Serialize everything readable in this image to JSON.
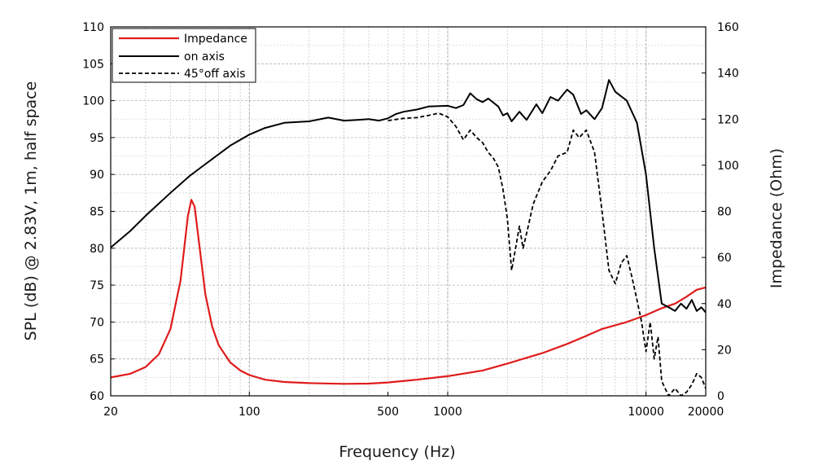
{
  "chart_data": {
    "type": "line",
    "title": "",
    "xlabel": "Frequency (Hz)",
    "ylabel_left": "SPL (dB) @ 2.83V, 1m, half space",
    "ylabel_right": "Impedance (Ohm)",
    "x_scale": "log",
    "xlim": [
      20,
      20000
    ],
    "ylim_left": [
      60,
      110
    ],
    "ylim_right": [
      0,
      160
    ],
    "x_ticks": [
      20,
      100,
      500,
      1000,
      10000,
      20000
    ],
    "x_tick_labels": [
      "20",
      "100",
      "500",
      "1000",
      "10000",
      "20000"
    ],
    "y_left_ticks": [
      60,
      65,
      70,
      75,
      80,
      85,
      90,
      95,
      100,
      105,
      110
    ],
    "y_right_ticks": [
      0,
      20,
      40,
      60,
      80,
      100,
      120,
      140,
      160
    ],
    "grid": true,
    "legend_position": "top-left",
    "series": [
      {
        "name": "Impedance",
        "axis": "right",
        "color": "#e01b1b",
        "style": "solid",
        "points": [
          [
            20,
            8
          ],
          [
            25,
            9.5
          ],
          [
            30,
            12.5
          ],
          [
            35,
            18
          ],
          [
            40,
            29
          ],
          [
            45,
            50
          ],
          [
            49,
            78
          ],
          [
            51,
            85
          ],
          [
            53,
            82
          ],
          [
            56,
            65
          ],
          [
            60,
            44
          ],
          [
            65,
            30
          ],
          [
            70,
            22
          ],
          [
            80,
            14.5
          ],
          [
            90,
            11
          ],
          [
            100,
            9
          ],
          [
            120,
            7
          ],
          [
            150,
            6
          ],
          [
            200,
            5.5
          ],
          [
            300,
            5.2
          ],
          [
            400,
            5.3
          ],
          [
            500,
            5.8
          ],
          [
            700,
            7
          ],
          [
            1000,
            8.5
          ],
          [
            1500,
            11
          ],
          [
            2000,
            14
          ],
          [
            3000,
            18.5
          ],
          [
            4000,
            22.5
          ],
          [
            5000,
            26
          ],
          [
            6000,
            29
          ],
          [
            8000,
            32
          ],
          [
            10000,
            35
          ],
          [
            12000,
            38
          ],
          [
            14000,
            40
          ],
          [
            16000,
            43
          ],
          [
            18000,
            46
          ],
          [
            20000,
            47
          ]
        ]
      },
      {
        "name": "on axis",
        "axis": "left",
        "color": "#000000",
        "style": "solid",
        "points": [
          [
            20,
            80.1
          ],
          [
            25,
            82.3
          ],
          [
            30,
            84.4
          ],
          [
            40,
            87.5
          ],
          [
            50,
            89.8
          ],
          [
            60,
            91.4
          ],
          [
            80,
            93.9
          ],
          [
            100,
            95.4
          ],
          [
            120,
            96.3
          ],
          [
            150,
            97
          ],
          [
            200,
            97.2
          ],
          [
            250,
            97.7
          ],
          [
            300,
            97.3
          ],
          [
            350,
            97.4
          ],
          [
            400,
            97.5
          ],
          [
            450,
            97.3
          ],
          [
            500,
            97.6
          ],
          [
            550,
            98.2
          ],
          [
            600,
            98.5
          ],
          [
            700,
            98.8
          ],
          [
            800,
            99.2
          ],
          [
            1000,
            99.3
          ],
          [
            1100,
            99
          ],
          [
            1200,
            99.4
          ],
          [
            1300,
            101
          ],
          [
            1400,
            100.2
          ],
          [
            1500,
            99.8
          ],
          [
            1600,
            100.3
          ],
          [
            1800,
            99.2
          ],
          [
            1900,
            98
          ],
          [
            2000,
            98.3
          ],
          [
            2100,
            97.2
          ],
          [
            2300,
            98.5
          ],
          [
            2500,
            97.4
          ],
          [
            2800,
            99.5
          ],
          [
            3000,
            98.3
          ],
          [
            3300,
            100.5
          ],
          [
            3600,
            100
          ],
          [
            4000,
            101.5
          ],
          [
            4300,
            100.8
          ],
          [
            4700,
            98.2
          ],
          [
            5000,
            98.7
          ],
          [
            5500,
            97.5
          ],
          [
            6000,
            99
          ],
          [
            6500,
            102.8
          ],
          [
            7000,
            101.2
          ],
          [
            8000,
            100
          ],
          [
            9000,
            97
          ],
          [
            10000,
            90
          ],
          [
            11000,
            80
          ],
          [
            12000,
            72.5
          ],
          [
            13000,
            72
          ],
          [
            14000,
            71.5
          ],
          [
            15000,
            72.5
          ],
          [
            16000,
            71.8
          ],
          [
            17000,
            73
          ],
          [
            18000,
            71.5
          ],
          [
            19000,
            72
          ],
          [
            20000,
            71.3
          ]
        ]
      },
      {
        "name": "45°off axis",
        "axis": "left",
        "color": "#000000",
        "style": "dashed",
        "points": [
          [
            500,
            97.3
          ],
          [
            600,
            97.6
          ],
          [
            700,
            97.7
          ],
          [
            800,
            98
          ],
          [
            900,
            98.3
          ],
          [
            1000,
            97.8
          ],
          [
            1100,
            96.5
          ],
          [
            1200,
            94.7
          ],
          [
            1300,
            96
          ],
          [
            1400,
            95
          ],
          [
            1500,
            94.3
          ],
          [
            1600,
            93
          ],
          [
            1700,
            92.2
          ],
          [
            1800,
            91
          ],
          [
            1900,
            88
          ],
          [
            2000,
            84
          ],
          [
            2100,
            77
          ],
          [
            2200,
            80
          ],
          [
            2300,
            83
          ],
          [
            2400,
            80
          ],
          [
            2500,
            82
          ],
          [
            2700,
            86
          ],
          [
            3000,
            89
          ],
          [
            3300,
            90.5
          ],
          [
            3600,
            92.5
          ],
          [
            4000,
            93
          ],
          [
            4300,
            96
          ],
          [
            4600,
            95
          ],
          [
            5000,
            96
          ],
          [
            5500,
            93
          ],
          [
            6000,
            85
          ],
          [
            6500,
            77
          ],
          [
            7000,
            75.2
          ],
          [
            7500,
            78
          ],
          [
            8000,
            79
          ],
          [
            8500,
            76
          ],
          [
            9000,
            73
          ],
          [
            9500,
            70
          ],
          [
            10000,
            66
          ],
          [
            10500,
            70
          ],
          [
            11000,
            65
          ],
          [
            11500,
            68
          ],
          [
            12000,
            62
          ],
          [
            13000,
            60
          ],
          [
            14000,
            61
          ],
          [
            15000,
            60
          ],
          [
            16000,
            60.5
          ],
          [
            17000,
            61.5
          ],
          [
            18000,
            63
          ],
          [
            19000,
            62.5
          ],
          [
            20000,
            61
          ]
        ]
      }
    ]
  }
}
